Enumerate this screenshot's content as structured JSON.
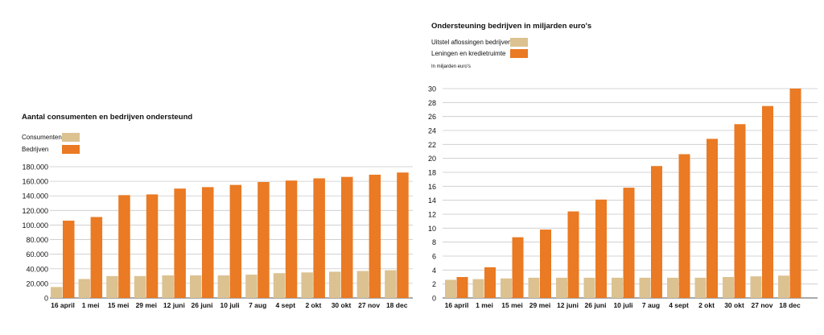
{
  "colors": {
    "consumenten": "#dcc291",
    "bedrijven": "#ea7a23",
    "uitstel": "#dcc291",
    "leningen": "#ea7a23",
    "grid": "#c9c9c9",
    "axis": "#555555"
  },
  "left": {
    "title": "Aantal consumenten en bedrijven ondersteund",
    "legend": [
      {
        "label": "Consumenten",
        "color": "#dcc291"
      },
      {
        "label": "Bedrijven",
        "color": "#ea7a23"
      }
    ]
  },
  "right": {
    "title": "Ondersteuning bedrijven in miljarden euro's",
    "legend": [
      {
        "label": "Uitstel aflossingen bedrijven",
        "color": "#dcc291"
      },
      {
        "label": "Leningen en kredietruimte",
        "color": "#ea7a23"
      }
    ],
    "unit": "In miljarden euro's"
  },
  "chart_data": [
    {
      "type": "bar",
      "title": "Aantal consumenten en bedrijven ondersteund",
      "categories": [
        "16 april",
        "1 mei",
        "15 mei",
        "29 mei",
        "12 juni",
        "26 juni",
        "10 juli",
        "7 aug",
        "4 sept",
        "2 okt",
        "30 okt",
        "27 nov",
        "18 dec"
      ],
      "series": [
        {
          "name": "Consumenten",
          "values": [
            15000,
            26000,
            30000,
            30000,
            31000,
            31000,
            31000,
            32000,
            34000,
            35000,
            36000,
            37000,
            38000
          ]
        },
        {
          "name": "Bedrijven",
          "values": [
            106000,
            111000,
            141000,
            142000,
            150000,
            152000,
            155000,
            159000,
            161000,
            164000,
            166000,
            169000,
            172000
          ]
        }
      ],
      "ylim": [
        0,
        180000
      ],
      "yticks": [
        0,
        20000,
        40000,
        60000,
        80000,
        100000,
        120000,
        140000,
        160000,
        180000
      ],
      "ytick_labels": [
        "0",
        "20.000",
        "40.000",
        "60.000",
        "80.000",
        "100.000",
        "120.000",
        "140.000",
        "160.000",
        "180.000"
      ],
      "grid": true,
      "legend_position": "top-left"
    },
    {
      "type": "bar",
      "title": "Ondersteuning bedrijven in miljarden euro's",
      "categories": [
        "16 april",
        "1 mei",
        "15 mei",
        "29 mei",
        "12 juni",
        "26 juni",
        "10 juli",
        "7 aug",
        "4 sept",
        "2 okt",
        "30 okt",
        "27 nov",
        "18 dec"
      ],
      "series": [
        {
          "name": "Uitstel aflossingen bedrijven",
          "values": [
            2.6,
            2.7,
            2.8,
            2.9,
            2.9,
            2.9,
            2.9,
            2.9,
            2.9,
            2.9,
            3.0,
            3.1,
            3.2
          ]
        },
        {
          "name": "Leningen en kredietruimte",
          "values": [
            3.0,
            4.4,
            8.7,
            9.8,
            12.4,
            14.1,
            15.8,
            18.9,
            20.6,
            22.8,
            24.9,
            27.5,
            30.0
          ]
        }
      ],
      "ylim": [
        0,
        30
      ],
      "yticks": [
        0,
        2,
        4,
        6,
        8,
        10,
        12,
        14,
        16,
        18,
        20,
        22,
        24,
        26,
        28,
        30
      ],
      "ytick_labels": [
        "0",
        "2",
        "4",
        "6",
        "8",
        "10",
        "12",
        "14",
        "16",
        "18",
        "20",
        "22",
        "24",
        "26",
        "28",
        "30"
      ],
      "ylabel": "In miljarden euro's",
      "grid": true,
      "legend_position": "top-left"
    }
  ]
}
